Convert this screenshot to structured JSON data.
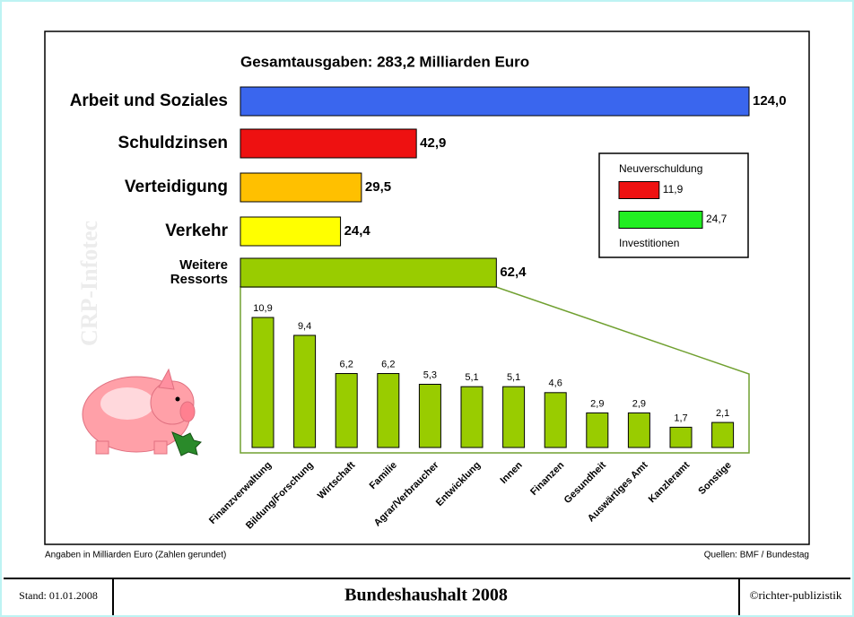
{
  "chart_data": [
    {
      "type": "bar",
      "orientation": "horizontal",
      "title": "Gesamtausgaben: 283,2 Milliarden Euro",
      "categories": [
        "Arbeit und Soziales",
        "Schuldzinsen",
        "Verteidigung",
        "Verkehr",
        "Weitere\nRessorts"
      ],
      "values": [
        124.0,
        42.9,
        29.5,
        24.4,
        62.4
      ],
      "value_labels": [
        "124,0",
        "42,9",
        "29,5",
        "24,4",
        "62,4"
      ],
      "colors": [
        "#3a66ee",
        "#ee1111",
        "#ffc000",
        "#ffff00",
        "#99cc00"
      ]
    },
    {
      "type": "bar",
      "categories": [
        "Finanzverwaltung",
        "Bildung/Forschung",
        "Wirtschaft",
        "Familie",
        "Agrar/Verbraucher",
        "Entwicklung",
        "Innen",
        "Finanzen",
        "Gesundheit",
        "Auswärtiges Amt",
        "Kanzleramt",
        "Sonstige"
      ],
      "values": [
        10.9,
        9.4,
        6.2,
        6.2,
        5.3,
        5.1,
        5.1,
        4.6,
        2.9,
        2.9,
        1.7,
        2.1
      ],
      "value_labels": [
        "10,9",
        "9,4",
        "6,2",
        "6,2",
        "5,3",
        "5,1",
        "5,1",
        "4,6",
        "2,9",
        "2,9",
        "1,7",
        "2,1"
      ],
      "color": "#99cc00"
    },
    {
      "type": "bar",
      "orientation": "horizontal",
      "categories": [
        "Neuverschuldung",
        "Investitionen"
      ],
      "values": [
        11.9,
        24.7
      ],
      "value_labels": [
        "11,9",
        "24,7"
      ],
      "colors": [
        "#ee1111",
        "#22ee22"
      ]
    }
  ],
  "notes": {
    "unit": "Angaben in Milliarden Euro (Zahlen gerundet)",
    "source": "Quellen: BMF / Bundestag"
  },
  "watermark": "CRP-Infotec",
  "footer": {
    "date": "Stand: 01.01.2008",
    "title": "Bundeshaushalt 2008",
    "copyright": "©richter-publizistik"
  }
}
